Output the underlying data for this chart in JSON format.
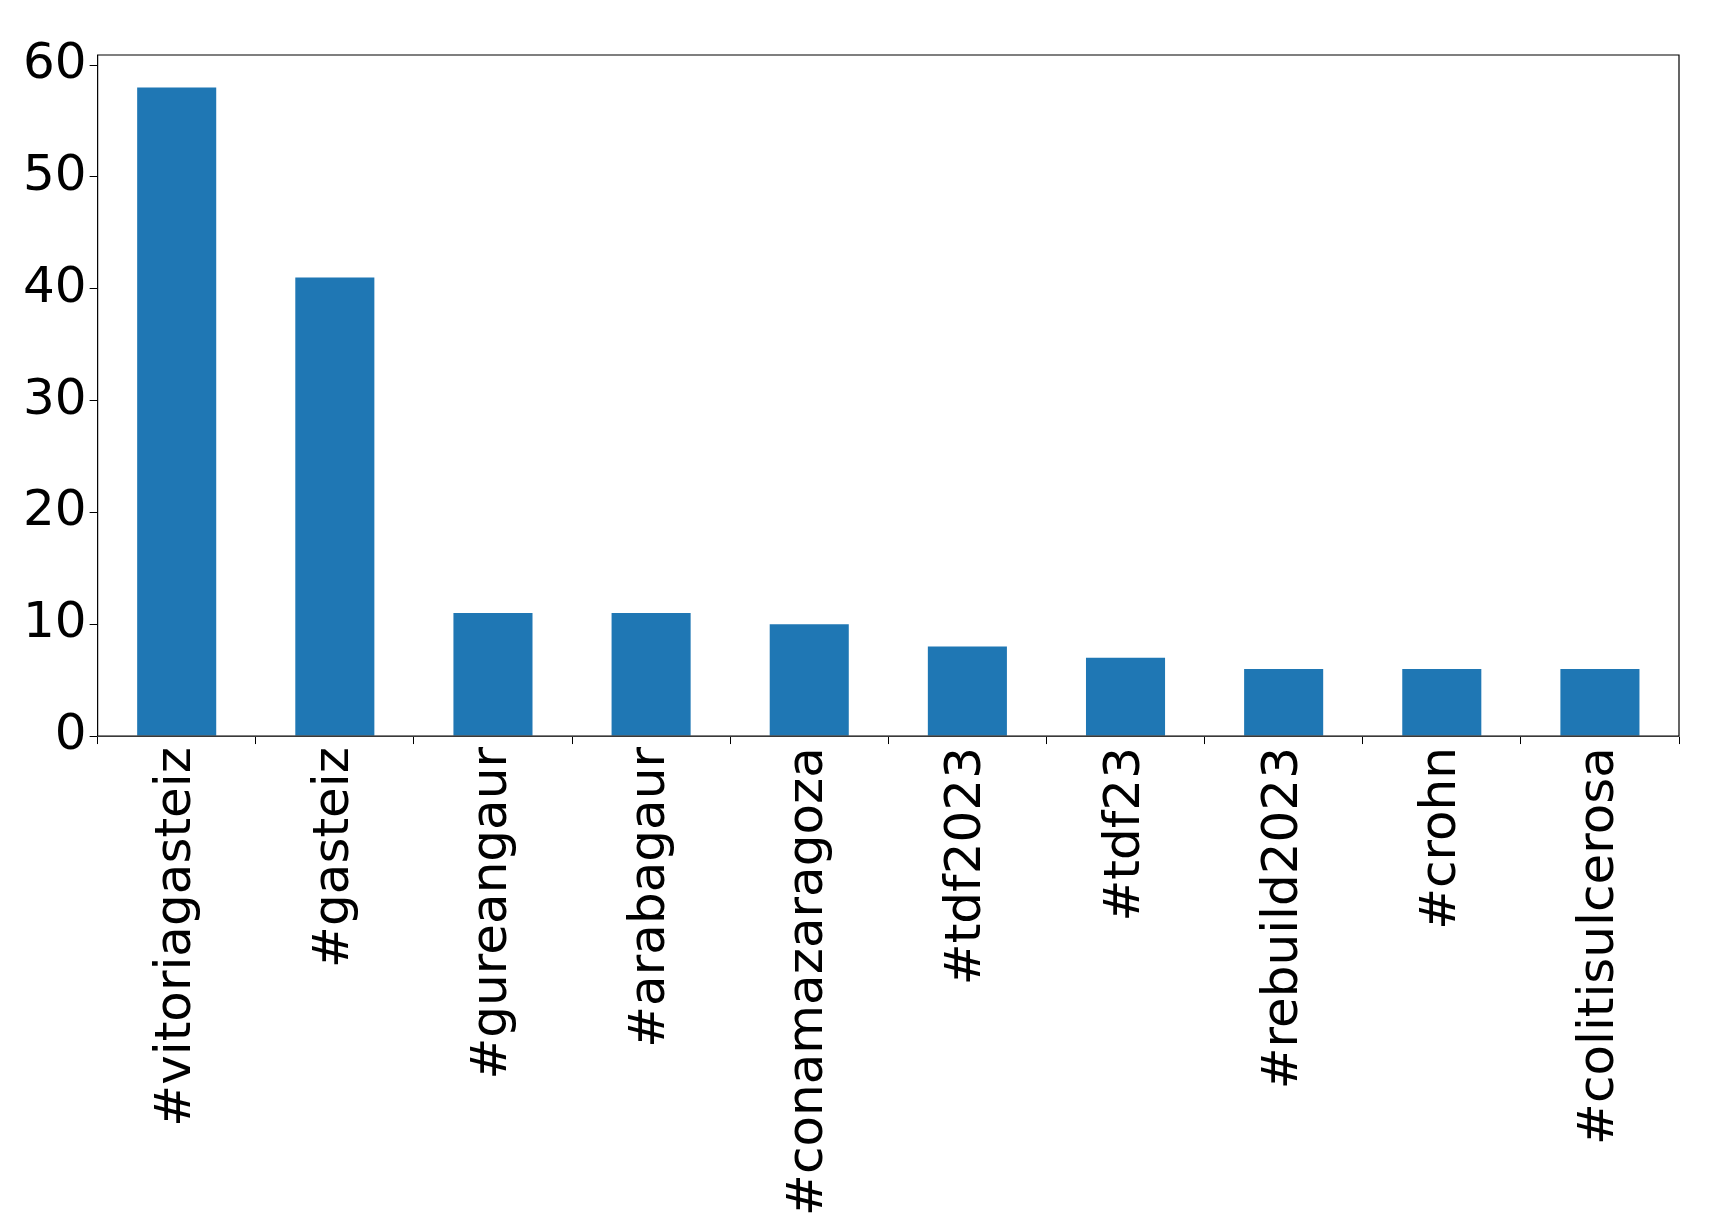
{
  "chart_data": {
    "type": "bar",
    "categories": [
      "#vitoriagasteiz",
      "#gasteiz",
      "#gureangaur",
      "#arabagaur",
      "#conamazaragoza",
      "#tdf2023",
      "#tdf23",
      "#rebuild2023",
      "#crohn",
      "#colitisulcerosa"
    ],
    "values": [
      58,
      41,
      11,
      11,
      10,
      8,
      7,
      6,
      6,
      6
    ],
    "color": "#1f77b4",
    "ylim": [
      0,
      60.9
    ],
    "yticks": [
      0,
      10,
      20,
      30,
      40,
      50,
      60
    ],
    "grid": false,
    "legend": false
  }
}
